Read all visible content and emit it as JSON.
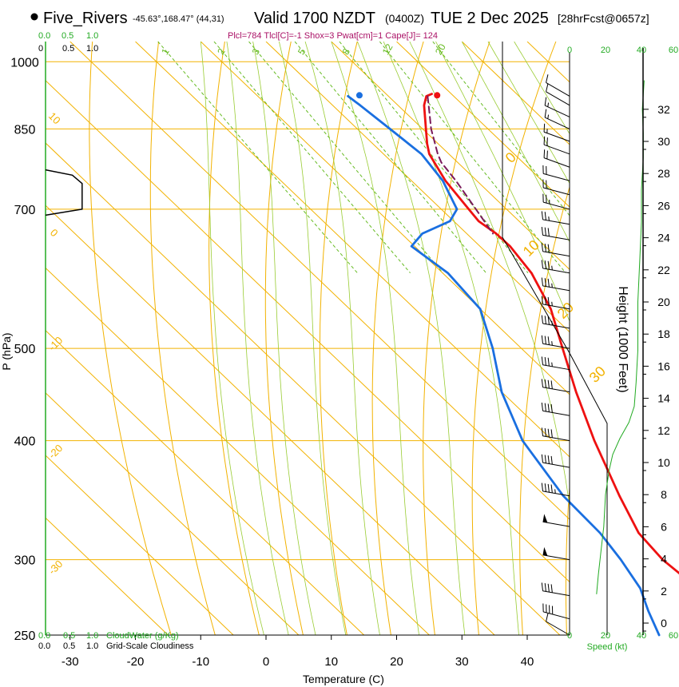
{
  "header": {
    "station": "Five_Rivers",
    "coords": "-45.63°,168.47° (44,31)",
    "valid": "Valid 1700 NZDT",
    "utc": "(0400Z)",
    "date": "TUE 2 Dec 2025",
    "forecast": "[28hrFcst@0657z]",
    "params": "Plcl=784 Tlcl[C]=-1 Shox=3 Pwat[cm]=1 Cape[J]= 124"
  },
  "colors": {
    "temperature": "#ee1111",
    "dewpoint": "#1a6fe0",
    "parcel": "#7a1a5a",
    "isotherm": "#f2b200",
    "adiabat": "#f2b200",
    "moist": "#99cc33",
    "mixing": "#66bb22",
    "green": "#22aa22",
    "black": "#000000"
  },
  "chart_data": {
    "type": "line",
    "title": "Skew-T Log-P Sounding",
    "xlabel": "Temperature (C)",
    "ylabel": "P (hPa)",
    "xlim": [
      -35,
      45
    ],
    "ylim": [
      1050,
      250
    ],
    "x_ticks": [
      -30,
      -20,
      -10,
      0,
      10,
      20,
      30,
      40
    ],
    "pressure_ticks": [
      250,
      300,
      400,
      500,
      700,
      850,
      1000
    ],
    "height_axis": {
      "label": "Height (1000 Feet)",
      "ticks": [
        0,
        2,
        4,
        6,
        8,
        10,
        12,
        14,
        16,
        18,
        20,
        22,
        24,
        26,
        28,
        30,
        32
      ]
    },
    "series": [
      {
        "name": "Temperature",
        "points": [
          {
            "p": 925,
            "t": 17.0
          },
          {
            "p": 920,
            "t": 15.8
          },
          {
            "p": 900,
            "t": 14.0
          },
          {
            "p": 850,
            "t": 10.5
          },
          {
            "p": 820,
            "t": 8.3
          },
          {
            "p": 800,
            "t": 7.0
          },
          {
            "p": 750,
            "t": 5.2
          },
          {
            "p": 700,
            "t": 4.2
          },
          {
            "p": 680,
            "t": 3.8
          },
          {
            "p": 660,
            "t": 4.5
          },
          {
            "p": 640,
            "t": 4.6
          },
          {
            "p": 600,
            "t": 3.6
          },
          {
            "p": 550,
            "t": 0.8
          },
          {
            "p": 500,
            "t": -3.7
          },
          {
            "p": 450,
            "t": -8.6
          },
          {
            "p": 400,
            "t": -13.6
          },
          {
            "p": 350,
            "t": -18.6
          },
          {
            "p": 320,
            "t": -21.6
          },
          {
            "p": 300,
            "t": -22.2
          },
          {
            "p": 280,
            "t": -21.4
          },
          {
            "p": 265,
            "t": -19.5
          },
          {
            "p": 250,
            "t": -15.5
          }
        ]
      },
      {
        "name": "Dewpoint",
        "points": [
          {
            "p": 920,
            "t": 3.8
          },
          {
            "p": 900,
            "t": 4.2
          },
          {
            "p": 850,
            "t": 5.0
          },
          {
            "p": 800,
            "t": 5.8
          },
          {
            "p": 750,
            "t": 4.8
          },
          {
            "p": 700,
            "t": 2.4
          },
          {
            "p": 680,
            "t": -0.6
          },
          {
            "p": 660,
            "t": -6.8
          },
          {
            "p": 640,
            "t": -10.5
          },
          {
            "p": 600,
            "t": -9.2
          },
          {
            "p": 550,
            "t": -10.0
          },
          {
            "p": 500,
            "t": -14.4
          },
          {
            "p": 450,
            "t": -20.0
          },
          {
            "p": 400,
            "t": -24.6
          },
          {
            "p": 350,
            "t": -27.2
          },
          {
            "p": 320,
            "t": -27.5
          },
          {
            "p": 300,
            "t": -28.6
          },
          {
            "p": 280,
            "t": -30.2
          },
          {
            "p": 265,
            "t": -32.6
          },
          {
            "p": 250,
            "t": -34.8
          }
        ]
      },
      {
        "name": "Parcel",
        "points": [
          {
            "p": 920,
            "t": 16.0
          },
          {
            "p": 900,
            "t": 14.7
          },
          {
            "p": 850,
            "t": 11.3
          },
          {
            "p": 800,
            "t": 8.3
          },
          {
            "p": 784,
            "t": 7.5
          },
          {
            "p": 750,
            "t": 6.8
          },
          {
            "p": 700,
            "t": 5.3
          },
          {
            "p": 660,
            "t": 4.0
          }
        ]
      }
    ],
    "surface": {
      "p": 922,
      "temperature": 17.6,
      "dewpoint": 5.7
    },
    "isotherm_labels": [
      "0",
      "10",
      "20",
      "30",
      "-10",
      "-20",
      "-30"
    ],
    "mixing_ratio_labels": [
      "1",
      "2",
      "3",
      "5",
      "8",
      "12",
      "20"
    ],
    "dry_adiabat_labels": [
      "10",
      "0"
    ],
    "cloud_scale": {
      "ticks": [
        "0.0",
        "0.5",
        "1.0"
      ],
      "top_ticks": [
        "0",
        "0.5",
        "1.0"
      ],
      "cloudwater_label": "CloudWater (g/Kg)",
      "cloudiness_label": "Grid-Scale Cloudiness",
      "cloudiness": [
        {
          "p": 690,
          "v": 0.0
        },
        {
          "p": 700,
          "v": 0.75
        },
        {
          "p": 745,
          "v": 0.75
        },
        {
          "p": 760,
          "v": 0.55
        },
        {
          "p": 770,
          "v": 0.0
        }
      ]
    },
    "wind_speed": {
      "label": "Speed (kt)",
      "ticks": [
        "0",
        "20",
        "40",
        "60"
      ],
      "profile": [
        {
          "h": 1.8,
          "s": 15
        },
        {
          "h": 3,
          "s": 16
        },
        {
          "h": 5,
          "s": 18
        },
        {
          "h": 6,
          "s": 19
        },
        {
          "h": 8,
          "s": 20
        },
        {
          "h": 9.5,
          "s": 22
        },
        {
          "h": 10.5,
          "s": 24
        },
        {
          "h": 11.5,
          "s": 28
        },
        {
          "h": 12.5,
          "s": 33
        },
        {
          "h": 13.5,
          "s": 36
        },
        {
          "h": 15,
          "s": 37
        },
        {
          "h": 17,
          "s": 38
        },
        {
          "h": 20,
          "s": 38
        },
        {
          "h": 22.5,
          "s": 39
        },
        {
          "h": 25,
          "s": 40
        },
        {
          "h": 27,
          "s": 40
        },
        {
          "h": 29,
          "s": 41
        },
        {
          "h": 30.5,
          "s": 41
        },
        {
          "h": 32,
          "s": 40.5
        },
        {
          "h": 33.8,
          "s": 41.5
        }
      ]
    },
    "wind_barbs": [
      {
        "p": 920,
        "dir": 300,
        "spd": 10
      },
      {
        "p": 900,
        "dir": 300,
        "spd": 10
      },
      {
        "p": 875,
        "dir": 295,
        "spd": 15
      },
      {
        "p": 850,
        "dir": 295,
        "spd": 15
      },
      {
        "p": 825,
        "dir": 290,
        "spd": 15
      },
      {
        "p": 800,
        "dir": 290,
        "spd": 20
      },
      {
        "p": 775,
        "dir": 290,
        "spd": 20
      },
      {
        "p": 750,
        "dir": 285,
        "spd": 20
      },
      {
        "p": 725,
        "dir": 285,
        "spd": 20
      },
      {
        "p": 700,
        "dir": 285,
        "spd": 25
      },
      {
        "p": 675,
        "dir": 280,
        "spd": 25
      },
      {
        "p": 650,
        "dir": 280,
        "spd": 30
      },
      {
        "p": 625,
        "dir": 280,
        "spd": 30
      },
      {
        "p": 600,
        "dir": 280,
        "spd": 35
      },
      {
        "p": 575,
        "dir": 280,
        "spd": 35
      },
      {
        "p": 550,
        "dir": 280,
        "spd": 35
      },
      {
        "p": 525,
        "dir": 280,
        "spd": 35
      },
      {
        "p": 500,
        "dir": 280,
        "spd": 35
      },
      {
        "p": 475,
        "dir": 280,
        "spd": 35
      },
      {
        "p": 450,
        "dir": 280,
        "spd": 40
      },
      {
        "p": 425,
        "dir": 280,
        "spd": 40
      },
      {
        "p": 400,
        "dir": 280,
        "spd": 40
      },
      {
        "p": 375,
        "dir": 280,
        "spd": 40
      },
      {
        "p": 350,
        "dir": 280,
        "spd": 45
      },
      {
        "p": 325,
        "dir": 280,
        "spd": 50
      },
      {
        "p": 300,
        "dir": 280,
        "spd": 50
      },
      {
        "p": 275,
        "dir": 280,
        "spd": 40
      },
      {
        "p": 260,
        "dir": 285,
        "spd": 40
      },
      {
        "p": 250,
        "dir": 300,
        "spd": 10
      }
    ]
  }
}
